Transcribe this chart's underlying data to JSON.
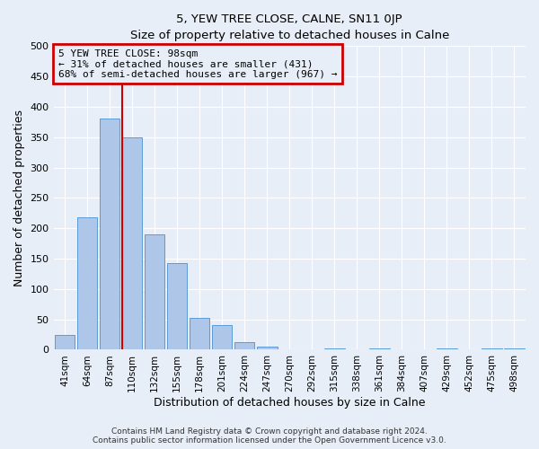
{
  "title": "5, YEW TREE CLOSE, CALNE, SN11 0JP",
  "subtitle": "Size of property relative to detached houses in Calne",
  "xlabel": "Distribution of detached houses by size in Calne",
  "ylabel": "Number of detached properties",
  "bar_labels": [
    "41sqm",
    "64sqm",
    "87sqm",
    "110sqm",
    "132sqm",
    "155sqm",
    "178sqm",
    "201sqm",
    "224sqm",
    "247sqm",
    "270sqm",
    "292sqm",
    "315sqm",
    "338sqm",
    "361sqm",
    "384sqm",
    "407sqm",
    "429sqm",
    "452sqm",
    "475sqm",
    "498sqm"
  ],
  "bar_values": [
    25,
    218,
    380,
    350,
    190,
    143,
    53,
    40,
    12,
    5,
    0,
    0,
    2,
    0,
    2,
    0,
    0,
    2,
    0,
    2,
    2
  ],
  "bar_color": "#aec6e8",
  "bar_edgecolor": "#5b9bd5",
  "annotation_box_text": "5 YEW TREE CLOSE: 98sqm\n← 31% of detached houses are smaller (431)\n68% of semi-detached houses are larger (967) →",
  "annotation_box_edgecolor": "#cc0000",
  "vline_color": "#cc0000",
  "ylim": [
    0,
    500
  ],
  "yticks": [
    0,
    50,
    100,
    150,
    200,
    250,
    300,
    350,
    400,
    450,
    500
  ],
  "footer_line1": "Contains HM Land Registry data © Crown copyright and database right 2024.",
  "footer_line2": "Contains public sector information licensed under the Open Government Licence v3.0.",
  "bg_color": "#e8eef8",
  "grid_color": "#ffffff"
}
